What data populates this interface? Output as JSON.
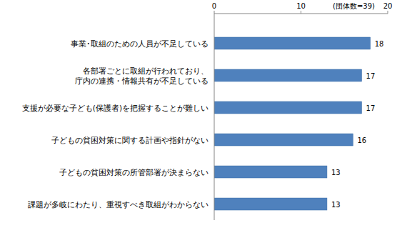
{
  "chart_data": {
    "type": "bar",
    "orientation": "horizontal",
    "xlabel": "(団体数=39)",
    "categories": [
      "事業･取組のための人員が不足している",
      "各部署ごとに取組が行われており、\n庁内の連携・情報共有が不足している",
      "支援が必要な子ども(保護者)を把握することが難しい",
      "子どもの貧困対策に関する計画や指針がない",
      "子どもの貧困対策の所管部署が決まらない",
      "課題が多岐にわたり、重視すべき取組がわからない"
    ],
    "values": [
      18,
      17,
      17,
      16,
      13,
      13
    ],
    "color": "#4f81bd",
    "xlim": [
      0,
      20
    ],
    "xticks": [
      0,
      10,
      20
    ],
    "grid": false,
    "data_labels": true
  }
}
